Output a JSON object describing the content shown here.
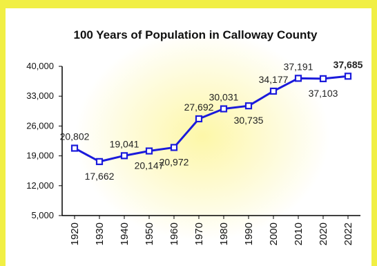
{
  "chart_data": {
    "type": "line",
    "title": "100 Years of Population in Calloway County",
    "categories": [
      "1920",
      "1930",
      "1940",
      "1950",
      "1960",
      "1970",
      "1980",
      "1990",
      "2000",
      "2010",
      "2020",
      "2022"
    ],
    "series": [
      {
        "values": [
          20802,
          17662,
          19041,
          20147,
          20972,
          27692,
          30031,
          30735,
          34177,
          37191,
          37103,
          37685
        ],
        "labels": [
          "20,802",
          "17,662",
          "19,041",
          "20,147",
          "20,972",
          "27,692",
          "30,031",
          "30,735",
          "34,177",
          "37,191",
          "37,103",
          "37,685"
        ],
        "color": "#1a1adb"
      }
    ],
    "yticks": [
      "5,000",
      "12,000",
      "19,000",
      "26,000",
      "33,000",
      "40,000"
    ],
    "ylim": [
      5000,
      40000
    ],
    "label_positions": [
      "above",
      "below",
      "above",
      "below",
      "below",
      "above",
      "above",
      "below",
      "above",
      "above",
      "below",
      "above"
    ],
    "bold_labels": [
      false,
      false,
      false,
      false,
      false,
      false,
      false,
      false,
      false,
      false,
      false,
      true
    ],
    "grid": false,
    "legend": "none"
  },
  "colors": {
    "frame": "#f1ef44",
    "line": "#1a1adb"
  }
}
